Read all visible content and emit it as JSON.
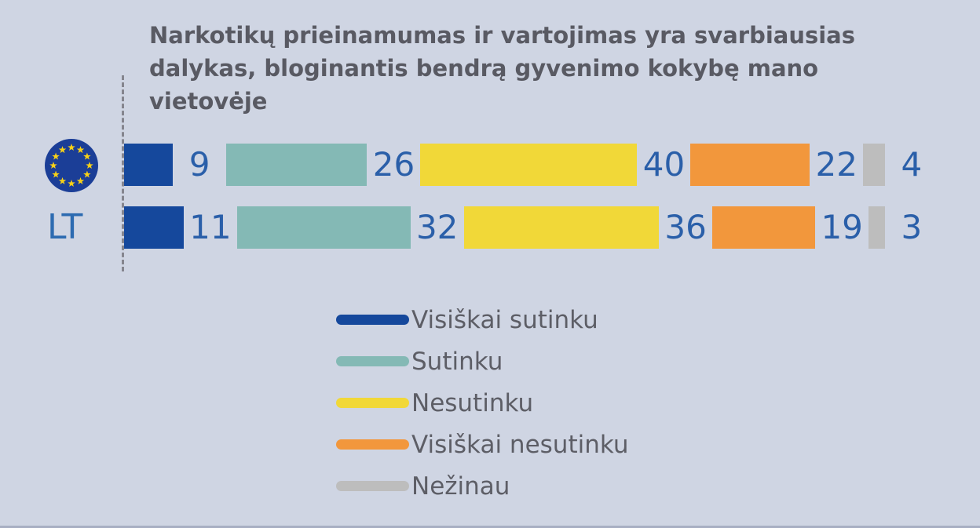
{
  "header": {
    "title_lines": [
      "Narkotikų prieinamumas ir vartojimas yra svarbiausias",
      "dalykas, bloginantis bendrą gyvenimo kokybę mano",
      "vietovėje"
    ]
  },
  "chart_data": {
    "type": "bar",
    "variant": "horizontal-stacked-with-value-labels",
    "title": "Narkotikų prieinamumas ir vartojimas yra svarbiausias dalykas, bloginantis bendrą gyvenimo kokybę mano vietovėje",
    "categories": [
      "EU",
      "LT"
    ],
    "category_icons": [
      "eu-flag",
      "text"
    ],
    "series": [
      {
        "name": "Visiškai sutinku",
        "color": "#15489c",
        "values": [
          9,
          11
        ]
      },
      {
        "name": "Sutinku",
        "color": "#84b9b5",
        "values": [
          26,
          32
        ]
      },
      {
        "name": "Nesutinku",
        "color": "#f1d838",
        "values": [
          40,
          36
        ]
      },
      {
        "name": "Visiškai nesutinku",
        "color": "#f2973c",
        "values": [
          22,
          19
        ]
      },
      {
        "name": "Nežinau",
        "color": "#bdbdbd",
        "values": [
          4,
          3
        ]
      }
    ],
    "value_label_color": "#2a5fa9",
    "legend_position": "bottom",
    "axis": {
      "baseline": "dashed-left",
      "unit": "percent"
    }
  },
  "colors": {
    "background": "#cfd5e3",
    "title_text": "#595a63",
    "legend_text": "#5d5e66",
    "dashed_line": "#85858e",
    "flag_blue": "#1b3e97",
    "flag_star": "#f7d117"
  }
}
